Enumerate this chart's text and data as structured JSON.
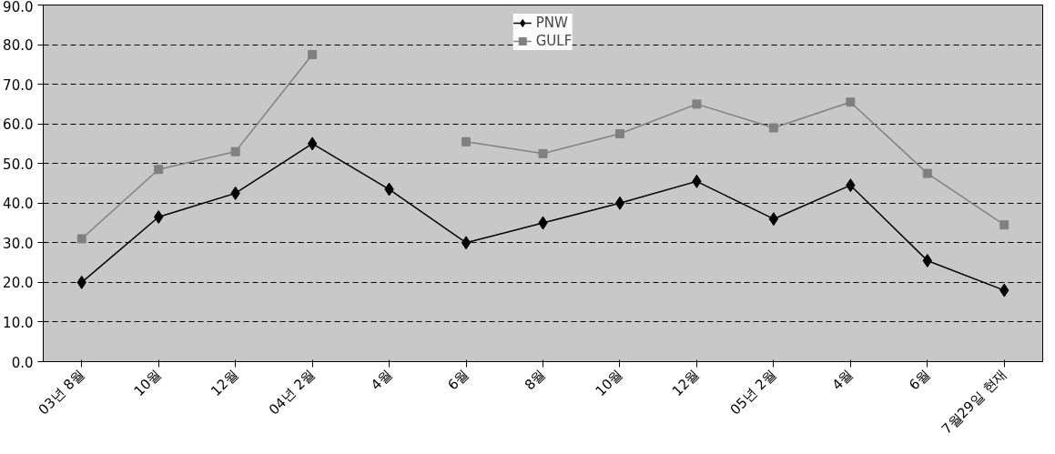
{
  "chart_data": {
    "type": "line",
    "categories": [
      "03년 8월",
      "10월",
      "12월",
      "04년 2월",
      "4월",
      "6월",
      "8월",
      "10월",
      "12월",
      "05년 2월",
      "4월",
      "6월",
      "7월29일 현재"
    ],
    "series": [
      {
        "name": "PNW",
        "color": "#000000",
        "marker": "diamond",
        "values": [
          20,
          36.5,
          42.5,
          55,
          43.5,
          30,
          35,
          40,
          45.5,
          36,
          44.5,
          25.5,
          18
        ]
      },
      {
        "name": "GULF",
        "color": "#808080",
        "marker": "square",
        "values": [
          31,
          48.5,
          53,
          77.5,
          null,
          55.5,
          52.5,
          57.5,
          65,
          59,
          65.5,
          47.5,
          34.5
        ]
      }
    ],
    "ylim": [
      0,
      90
    ],
    "yticks": [
      {
        "value": 0,
        "label": "0.0"
      },
      {
        "value": 10,
        "label": "10.0"
      },
      {
        "value": 20,
        "label": "20.0"
      },
      {
        "value": 30,
        "label": "30.0"
      },
      {
        "value": 40,
        "label": "40.0"
      },
      {
        "value": 50,
        "label": "50.0"
      },
      {
        "value": 60,
        "label": "60.0"
      },
      {
        "value": 70,
        "label": "70.0"
      },
      {
        "value": 80,
        "label": "80.0"
      },
      {
        "value": 90,
        "label": "90.0"
      }
    ],
    "grid": "y",
    "legend": "top",
    "line_style": "solid"
  }
}
